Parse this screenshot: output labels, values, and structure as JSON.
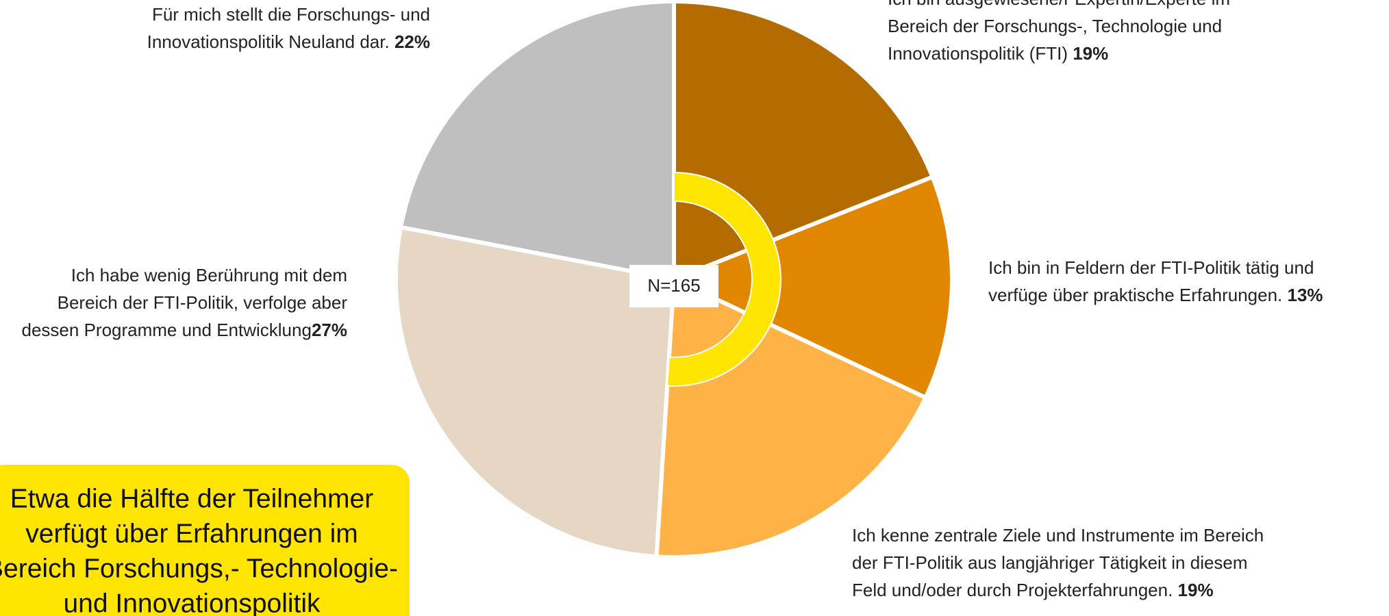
{
  "chart_data": {
    "type": "pie",
    "labels": [
      [
        "Ich bin ausgewiesene/r Expertin/Experte im",
        "Bereich der Forschungs-, Technologie und",
        "Innovationspolitik (FTI)"
      ],
      [
        "Ich bin in Feldern der FTI-Politik tätig und",
        "verfüge über praktische Erfahrungen."
      ],
      [
        "Ich kenne zentrale Ziele und Instrumente im Bereich",
        "der FTI-Politik aus langjähriger Tätigkeit in diesem",
        "Feld und/oder durch Projekterfahrungen."
      ],
      [
        "Ich habe wenig Berührung mit dem",
        "Bereich der FTI-Politik, verfolge aber",
        "dessen Programme und Entwicklung",
        ""
      ],
      [
        "Für mich stellt die Forschungs- und",
        "Innovationspolitik Neuland dar."
      ]
    ],
    "values": [
      19,
      13,
      19,
      27,
      22
    ],
    "value_labels": [
      "19%",
      "13%",
      "19%",
      "27%",
      "22%"
    ],
    "colors": [
      "#b46c00",
      "#e08600",
      "#ffb347",
      "#e5d7c3",
      "#bfbfbf"
    ],
    "inner_ring": {
      "values": [
        51
      ],
      "color": "#ffe500"
    },
    "center_label": "N=165",
    "callout": [
      "Etwa die Hälfte der Teilnehmer",
      "verfügt über Erfahrungen im",
      "Bereich Forschungs,- Technologie-",
      "und Innovationspolitik"
    ]
  }
}
